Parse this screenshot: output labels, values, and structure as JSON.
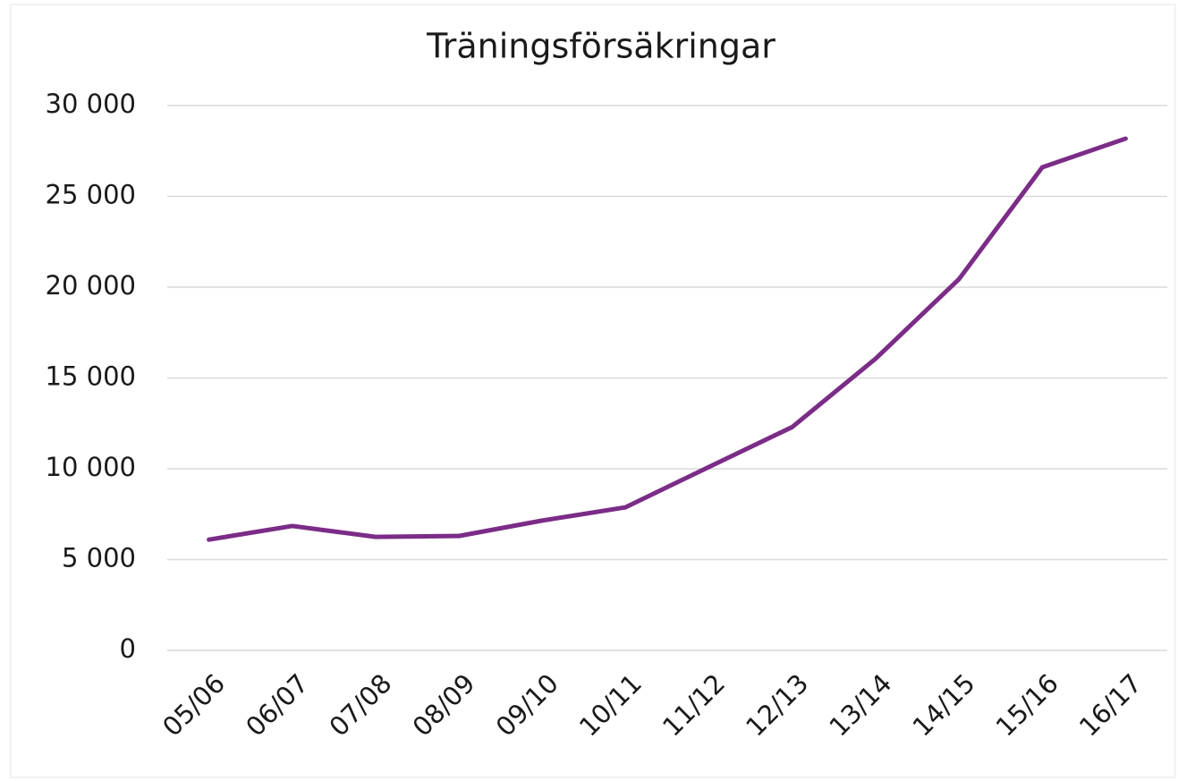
{
  "chart_data": {
    "type": "line",
    "title": "Träningsförsäkringar",
    "categories": [
      "05/06",
      "06/07",
      "07/08",
      "08/09",
      "09/10",
      "10/11",
      "11/12",
      "12/13",
      "13/14",
      "14/15",
      "15/16",
      "16/17"
    ],
    "series": [
      {
        "name": "Träningsförsäkringar",
        "color": "#7b2c87",
        "values": [
          6100,
          6850,
          6250,
          6300,
          7150,
          7880,
          10100,
          12300,
          16060,
          20440,
          26600,
          28180
        ]
      }
    ],
    "ylim": [
      0,
      30000
    ],
    "yticks": [
      0,
      {
        "value": 5000,
        "label": "5 000"
      },
      {
        "value": 10000,
        "label": "10 000"
      },
      {
        "value": 15000,
        "label": "15 000"
      },
      {
        "value": 20000,
        "label": "20 000"
      },
      {
        "value": 25000,
        "label": "25 000"
      },
      {
        "value": 30000,
        "label": "30 000"
      }
    ],
    "grid": true
  }
}
